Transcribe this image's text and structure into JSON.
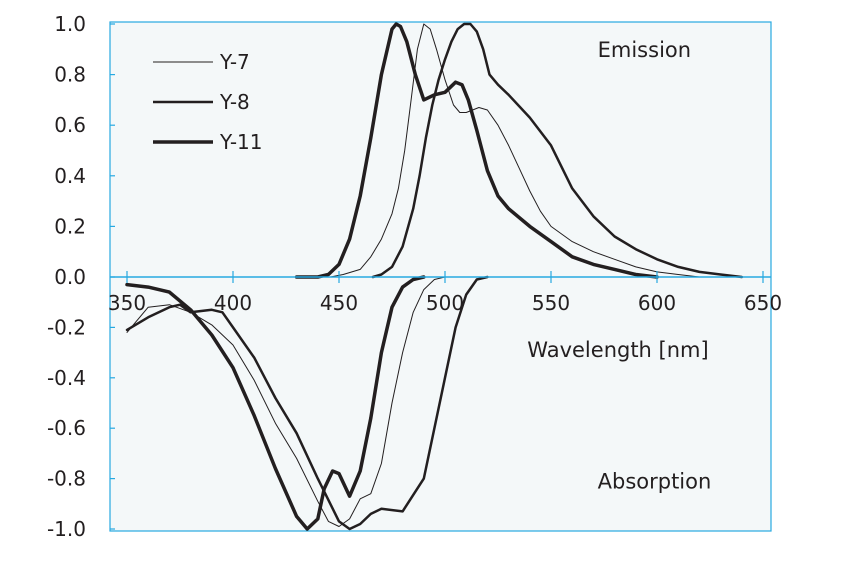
{
  "chart_data": {
    "type": "line",
    "xlabel": "Wavelength [nm]",
    "ylabel": "",
    "xlim": [
      350,
      650
    ],
    "ylim": [
      -1.0,
      1.0
    ],
    "xticks": [
      350,
      400,
      450,
      500,
      550,
      600,
      650
    ],
    "xtick_labels": [
      "350",
      "400",
      "450",
      "500",
      "550",
      "600",
      "650"
    ],
    "yticks": [
      1.0,
      0.8,
      0.6,
      0.4,
      0.2,
      0.0,
      -0.2,
      -0.4,
      -0.6,
      -0.8,
      -1.0
    ],
    "ytick_labels": [
      "1.0",
      "0.8",
      "0.6",
      "0.4",
      "0.2",
      "0.0",
      "-0.2",
      "-0.4",
      "-0.6",
      "-0.8",
      "-1.0"
    ],
    "grid": false,
    "legend_position": "top-left",
    "annotations": [
      {
        "text": "Emission",
        "x": 572,
        "y": 0.87
      },
      {
        "text": "Absorption",
        "x": 572,
        "y": -0.84
      }
    ],
    "colors": {
      "line": "#231f20",
      "plot_background": "#f4f8f9",
      "frame": "#27a9e1"
    },
    "series": [
      {
        "name": "Y-7",
        "stroke": 1,
        "emission": {
          "x": [
            446,
            452,
            460,
            465,
            470,
            475,
            478,
            481,
            484,
            487,
            490,
            493,
            496,
            500,
            504,
            507,
            510,
            513,
            516,
            520,
            525,
            530,
            535,
            540,
            545,
            550,
            560,
            570,
            580,
            590,
            600,
            610,
            620,
            630,
            640
          ],
          "y": [
            0.0,
            0.01,
            0.03,
            0.08,
            0.15,
            0.25,
            0.35,
            0.5,
            0.7,
            0.9,
            1.0,
            0.98,
            0.9,
            0.78,
            0.68,
            0.65,
            0.65,
            0.66,
            0.67,
            0.66,
            0.6,
            0.52,
            0.43,
            0.34,
            0.26,
            0.2,
            0.14,
            0.1,
            0.07,
            0.04,
            0.02,
            0.01,
            0.0,
            0.0,
            0.0
          ]
        },
        "absorption": {
          "x": [
            350,
            360,
            370,
            380,
            390,
            400,
            410,
            420,
            430,
            440,
            445,
            450,
            455,
            460,
            465,
            470,
            475,
            480,
            485,
            490,
            495,
            500
          ],
          "y": [
            -0.22,
            -0.12,
            -0.11,
            -0.14,
            -0.19,
            -0.27,
            -0.41,
            -0.58,
            -0.72,
            -0.89,
            -0.97,
            -0.99,
            -0.96,
            -0.88,
            -0.86,
            -0.74,
            -0.5,
            -0.3,
            -0.14,
            -0.05,
            -0.01,
            0.0
          ]
        }
      },
      {
        "name": "Y-8",
        "stroke": 2.5,
        "emission": {
          "x": [
            466,
            470,
            475,
            480,
            485,
            488,
            491,
            494,
            497,
            500,
            503,
            506,
            509,
            512,
            515,
            518,
            521,
            525,
            530,
            540,
            550,
            560,
            570,
            580,
            590,
            600,
            610,
            620,
            630,
            640
          ],
          "y": [
            0.0,
            0.01,
            0.04,
            0.12,
            0.27,
            0.4,
            0.55,
            0.68,
            0.78,
            0.86,
            0.93,
            0.98,
            1.0,
            1.0,
            0.97,
            0.9,
            0.8,
            0.76,
            0.72,
            0.63,
            0.52,
            0.35,
            0.24,
            0.16,
            0.11,
            0.07,
            0.04,
            0.02,
            0.01,
            0.0
          ]
        },
        "absorption": {
          "x": [
            350,
            360,
            370,
            375,
            380,
            390,
            395,
            400,
            410,
            420,
            430,
            440,
            450,
            455,
            460,
            465,
            470,
            480,
            490,
            500,
            505,
            510,
            515,
            520
          ],
          "y": [
            -0.21,
            -0.16,
            -0.12,
            -0.11,
            -0.14,
            -0.13,
            -0.14,
            -0.2,
            -0.32,
            -0.48,
            -0.62,
            -0.8,
            -0.97,
            -1.0,
            -0.98,
            -0.94,
            -0.92,
            -0.93,
            -0.8,
            -0.4,
            -0.2,
            -0.07,
            -0.01,
            0.0
          ]
        }
      },
      {
        "name": "Y-11",
        "stroke": 3.5,
        "emission": {
          "x": [
            430,
            440,
            445,
            450,
            455,
            460,
            465,
            470,
            475,
            477,
            479,
            482,
            486,
            490,
            495,
            500,
            505,
            508,
            511,
            515,
            520,
            525,
            530,
            540,
            550,
            560,
            570,
            580,
            590,
            600
          ],
          "y": [
            0.0,
            0.0,
            0.01,
            0.05,
            0.15,
            0.32,
            0.55,
            0.8,
            0.98,
            1.0,
            0.99,
            0.93,
            0.8,
            0.7,
            0.72,
            0.73,
            0.77,
            0.76,
            0.7,
            0.58,
            0.42,
            0.32,
            0.27,
            0.2,
            0.14,
            0.08,
            0.05,
            0.03,
            0.01,
            0.0
          ]
        },
        "absorption": {
          "x": [
            350,
            360,
            370,
            380,
            390,
            400,
            410,
            420,
            430,
            435,
            440,
            443,
            447,
            450,
            455,
            460,
            465,
            470,
            475,
            480,
            485,
            490
          ],
          "y": [
            -0.03,
            -0.04,
            -0.06,
            -0.13,
            -0.23,
            -0.36,
            -0.55,
            -0.76,
            -0.95,
            -1.0,
            -0.96,
            -0.84,
            -0.77,
            -0.78,
            -0.87,
            -0.77,
            -0.56,
            -0.3,
            -0.12,
            -0.04,
            -0.01,
            0.0
          ]
        }
      }
    ]
  }
}
